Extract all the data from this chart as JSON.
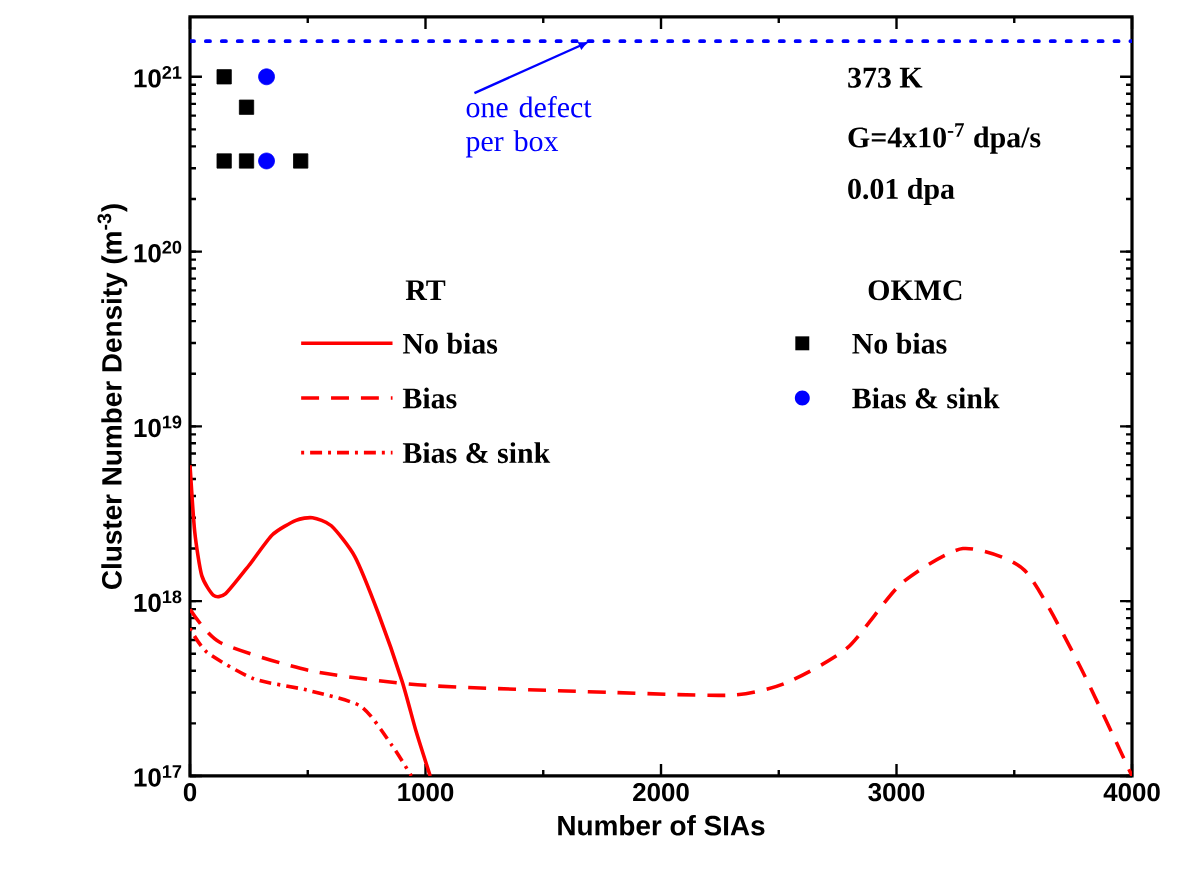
{
  "chart_data": {
    "type": "line",
    "xlabel": "Number of SIAs",
    "ylabel": "Cluster Number Density (m$^{-3}$)",
    "log": "y",
    "xlim": [
      0,
      4000
    ],
    "ylim": [
      1e+17,
      2.2e+21
    ],
    "xticks": [
      0,
      1000,
      2000,
      3000,
      4000
    ],
    "yticks": [
      {
        "value": 1e+17,
        "label": "10$^{17}$"
      },
      {
        "value": 1e+18,
        "label": "10$^{18}$"
      },
      {
        "value": 1e+19,
        "label": "10$^{19}$"
      },
      {
        "value": 1e+20,
        "label": "10$^{20}$"
      },
      {
        "value": 1e+21,
        "label": "10$^{21}$"
      }
    ],
    "legend": "center",
    "series": [
      {
        "name": "No bias",
        "line_style": "solid",
        "color": "#ff0000",
        "x": [
          0,
          20,
          50,
          100,
          150,
          250,
          350,
          450,
          520,
          600,
          700,
          800,
          900,
          960,
          1020
        ],
        "values": [
          6e+18,
          2.5e+18,
          1.4e+18,
          1.08e+18,
          1.1e+18,
          1.6e+18,
          2.4e+18,
          2.9e+18,
          3e+18,
          2.7e+18,
          1.8e+18,
          8.5e+17,
          3.5e+17,
          1.8e+17,
          1e+17
        ]
      },
      {
        "name": "Bias",
        "line_style": "dashed",
        "color": "#ff0000",
        "x": [
          0,
          128,
          512,
          1000,
          1807,
          2300,
          2529,
          2791,
          3020,
          3282,
          3544,
          3773,
          4000
        ],
        "values": [
          9e+17,
          5.8e+17,
          4e+17,
          3.3e+17,
          3e+17,
          2.9e+17,
          3.4e+17,
          5.4e+17,
          1.26e+18,
          2e+18,
          1.5e+18,
          4.4e+17,
          1e+17
        ]
      },
      {
        "name": "Bias & sink",
        "line_style": "dotted",
        "color": "#ff0000",
        "x": [
          0,
          72,
          270,
          497,
          726,
          857,
          940
        ],
        "values": [
          7e+17,
          5.1e+17,
          3.6e+17,
          3.1e+17,
          2.5e+17,
          1.5e+17,
          1e+17
        ]
      },
      {
        "name": "No bias",
        "type": "scatter",
        "marker": "square",
        "color": "#000000",
        "x": [
          145,
          240,
          145,
          240,
          470
        ],
        "values": [
          1e+21,
          6.7e+20,
          3.3e+20,
          3.3e+20,
          3.3e+20
        ]
      },
      {
        "name": "Bias & sink",
        "type": "scatter",
        "marker": "circle",
        "color": "#0000ff",
        "x": [
          325,
          325
        ],
        "values": [
          1e+21,
          3.3e+20
        ]
      }
    ],
    "ref_lines": [
      {
        "axis": "y",
        "value": 1.6e+21,
        "label": "one defect per box",
        "color": "#0000ff",
        "line_style": "dotted"
      }
    ],
    "annotations": [
      "RT",
      "OKMC",
      "373 K",
      "G=4x10$^{-7}$ dpa/s",
      "0.01 dpa"
    ]
  }
}
